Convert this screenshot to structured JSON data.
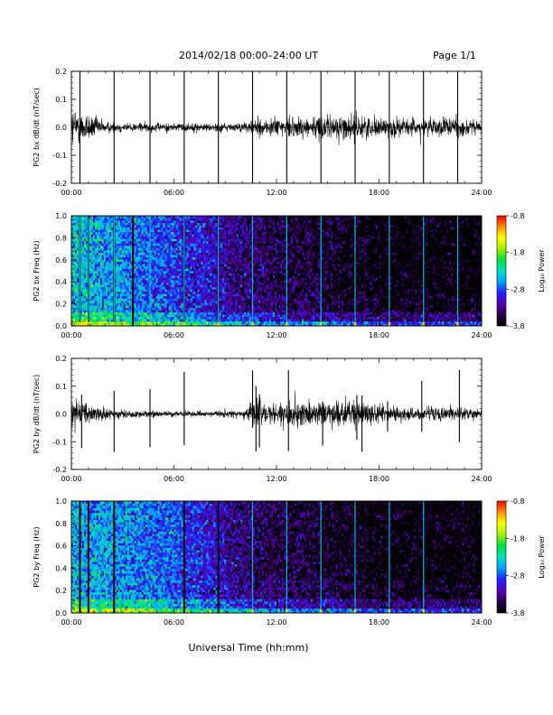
{
  "header": {
    "title": "2014/02/18  00:00–24:00 UT",
    "page_label": "Page 1/1"
  },
  "footer": {
    "xlabel": "Universal Time (hh:mm)"
  },
  "x_axis": {
    "ticks": [
      "00:00",
      "06:00",
      "12:00",
      "18:00",
      "24:00"
    ],
    "range_hours": [
      0,
      24
    ]
  },
  "colorbar": {
    "label": "Log₁₀ Power",
    "ticks": [
      "-0.8",
      "-1.8",
      "-2.8",
      "-3.8"
    ],
    "range": [
      -3.8,
      -0.8
    ],
    "colors": [
      "#000000",
      "#2a0050",
      "#5a00b4",
      "#2020ff",
      "#00a0ff",
      "#00e0c0",
      "#00e040",
      "#a0f000",
      "#ffff00",
      "#ff9000",
      "#ff0000"
    ]
  },
  "chart_data": [
    {
      "type": "line",
      "ylabel": "PG2 bx dB/dt (nT/sec)",
      "ylim": [
        -0.2,
        0.2
      ],
      "yticks": [
        "0.2",
        "0.1",
        "0.0",
        "-0.1",
        "-0.2"
      ],
      "x_unit": "hours UT",
      "spikes_at_hours": [
        0.5,
        2.5,
        4.6,
        6.6,
        8.6,
        10.6,
        12.6,
        14.6,
        16.6,
        18.6,
        20.6,
        22.6
      ],
      "noise_envelope": [
        {
          "x": 0,
          "amp": 0.07
        },
        {
          "x": 1,
          "amp": 0.05
        },
        {
          "x": 2,
          "amp": 0.02
        },
        {
          "x": 4,
          "amp": 0.015
        },
        {
          "x": 6,
          "amp": 0.015
        },
        {
          "x": 8,
          "amp": 0.015
        },
        {
          "x": 10,
          "amp": 0.015
        },
        {
          "x": 10.8,
          "amp": 0.03
        },
        {
          "x": 12,
          "amp": 0.035
        },
        {
          "x": 14,
          "amp": 0.04
        },
        {
          "x": 16,
          "amp": 0.045
        },
        {
          "x": 18,
          "amp": 0.035
        },
        {
          "x": 20,
          "amp": 0.03
        },
        {
          "x": 22,
          "amp": 0.035
        },
        {
          "x": 24,
          "amp": 0.025
        }
      ]
    },
    {
      "type": "heatmap",
      "ylabel": "PG2 bx Freq (Hz)",
      "ylim": [
        0.0,
        1.0
      ],
      "yticks": [
        "1.0",
        "0.8",
        "0.6",
        "0.4",
        "0.2",
        "0.0"
      ],
      "x_unit": "hours UT",
      "z_range": [
        -3.8,
        -0.8
      ],
      "data_gaps_at_hours": [
        0.5,
        1.0,
        2.5,
        3.6,
        6.6,
        8.6
      ],
      "vertical_lines_at_hours": [
        0.5,
        1.0,
        2.5,
        4.6,
        6.6,
        8.6,
        10.6,
        12.6,
        14.6,
        16.6,
        18.6,
        20.6,
        22.6
      ],
      "background_level_vs_time": [
        {
          "x": 0,
          "level": -2.4
        },
        {
          "x": 3,
          "level": -2.6
        },
        {
          "x": 6,
          "level": -2.9
        },
        {
          "x": 9,
          "level": -3.2
        },
        {
          "x": 12,
          "level": -3.5
        },
        {
          "x": 15,
          "level": -3.6
        },
        {
          "x": 18,
          "level": -3.8
        },
        {
          "x": 24,
          "level": -3.8
        }
      ]
    },
    {
      "type": "line",
      "ylabel": "PG2 by dB/dt (nT/sec)",
      "ylim": [
        -0.2,
        0.2
      ],
      "yticks": [
        "0.2",
        "0.1",
        "0.0",
        "-0.1",
        "-0.2"
      ],
      "x_unit": "hours UT",
      "spikes_at_hours": [
        0.6,
        2.5,
        4.6,
        6.6,
        10.6,
        10.8,
        11.0,
        12.7,
        14.7,
        16.7,
        17.0,
        18.5,
        20.5,
        22.7
      ],
      "noise_envelope": [
        {
          "x": 0,
          "amp": 0.04
        },
        {
          "x": 1,
          "amp": 0.035
        },
        {
          "x": 2,
          "amp": 0.02
        },
        {
          "x": 4,
          "amp": 0.012
        },
        {
          "x": 6,
          "amp": 0.01
        },
        {
          "x": 8,
          "amp": 0.01
        },
        {
          "x": 10,
          "amp": 0.012
        },
        {
          "x": 10.7,
          "amp": 0.06
        },
        {
          "x": 11.5,
          "amp": 0.03
        },
        {
          "x": 12,
          "amp": 0.04
        },
        {
          "x": 14,
          "amp": 0.045
        },
        {
          "x": 16,
          "amp": 0.045
        },
        {
          "x": 18,
          "amp": 0.035
        },
        {
          "x": 20,
          "amp": 0.025
        },
        {
          "x": 22,
          "amp": 0.025
        },
        {
          "x": 24,
          "amp": 0.02
        }
      ]
    },
    {
      "type": "heatmap",
      "ylabel": "PG2 by Freq (Hz)",
      "ylim": [
        0.0,
        1.0
      ],
      "yticks": [
        "1.0",
        "0.8",
        "0.6",
        "0.4",
        "0.2",
        "0.0"
      ],
      "x_unit": "hours UT",
      "z_range": [
        -3.8,
        -0.8
      ],
      "data_gaps_at_hours": [
        0.5,
        1.0,
        2.5,
        6.6,
        8.6
      ],
      "vertical_lines_at_hours": [
        10.6,
        12.6,
        14.6,
        16.6,
        18.6,
        20.6
      ],
      "background_level_vs_time": [
        {
          "x": 0,
          "level": -2.5
        },
        {
          "x": 3,
          "level": -2.6
        },
        {
          "x": 6,
          "level": -2.8
        },
        {
          "x": 9,
          "level": -3.2
        },
        {
          "x": 12,
          "level": -3.5
        },
        {
          "x": 15,
          "level": -3.6
        },
        {
          "x": 18,
          "level": -3.8
        },
        {
          "x": 24,
          "level": -3.8
        }
      ]
    }
  ]
}
